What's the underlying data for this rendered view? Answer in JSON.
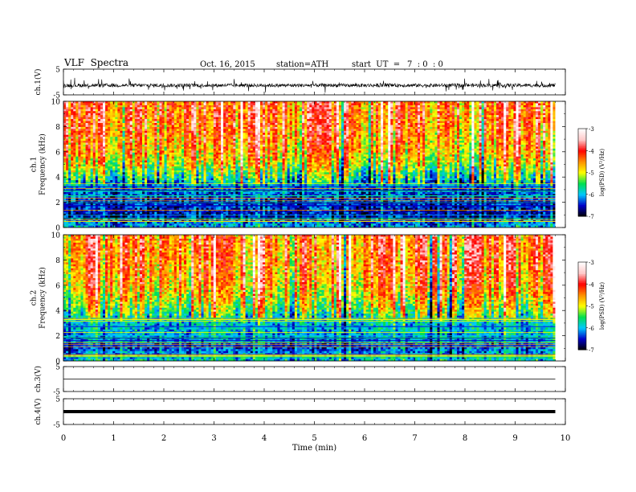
{
  "header": {
    "title": "VLF  Spectra",
    "date": "Oct. 16, 2015",
    "station": "station=ATH",
    "start_label": "start  UT  =",
    "start_time": "7  : 0  : 0"
  },
  "chart_data": [
    {
      "panel": "ch1-waveform",
      "type": "line",
      "ylabel": "ch.1(V)",
      "ylim": [
        -5,
        5
      ],
      "yticks": [
        "5",
        "-5"
      ],
      "xlim": [
        0,
        10
      ],
      "baseline": -1.3,
      "duration_min": 9.8,
      "color": "#000000"
    },
    {
      "panel": "ch1-spectrogram",
      "type": "heatmap",
      "ylabel": "ch.1\nFrequency  (kHz)",
      "ylim": [
        0,
        10
      ],
      "yticks": [
        "0",
        "2",
        "4",
        "6",
        "8",
        "10"
      ],
      "xlim": [
        0,
        9.8
      ],
      "colorbar": {
        "label": "log(PSD) (V²/Hz)",
        "range": [
          -7,
          -3
        ],
        "ticks": [
          "-7",
          "-6",
          "-5",
          "-4",
          "-3"
        ],
        "colors": [
          "#000000",
          "#0000c8",
          "#00c8ff",
          "#00e050",
          "#ffff00",
          "#ff9000",
          "#ff0000",
          "#ffc8c8",
          "#ffffff"
        ]
      },
      "level_by_frequency_khz": [
        [
          0,
          -6.0
        ],
        [
          1,
          -6.6
        ],
        [
          2,
          -6.4
        ],
        [
          3,
          -6.3
        ],
        [
          4,
          -5.6
        ],
        [
          5,
          -5.0
        ],
        [
          6,
          -4.6
        ],
        [
          8,
          -4.3
        ],
        [
          10,
          -4.2
        ]
      ]
    },
    {
      "panel": "ch2-spectrogram",
      "type": "heatmap",
      "ylabel": "ch.2\nFrequency  (kHz)",
      "ylim": [
        0,
        10
      ],
      "yticks": [
        "0",
        "2",
        "4",
        "6",
        "8",
        "10"
      ],
      "xlim": [
        0,
        9.8
      ],
      "colorbar": {
        "label": "log(PSD) (V²/Hz)",
        "range": [
          -7,
          -3
        ],
        "ticks": [
          "-7",
          "-6",
          "-5",
          "-4",
          "-3"
        ],
        "colors": [
          "#000000",
          "#0000c8",
          "#00c8ff",
          "#00e050",
          "#ffff00",
          "#ff9000",
          "#ff0000",
          "#ffc8c8",
          "#ffffff"
        ]
      },
      "level_by_frequency_khz": [
        [
          0,
          -5.8
        ],
        [
          1,
          -6.3
        ],
        [
          2,
          -6.0
        ],
        [
          3,
          -5.9
        ],
        [
          4,
          -5.2
        ],
        [
          5,
          -4.8
        ],
        [
          6,
          -4.5
        ],
        [
          8,
          -4.3
        ],
        [
          10,
          -4.2
        ]
      ]
    },
    {
      "panel": "ch3-waveform",
      "type": "line",
      "ylabel": "ch.3(V)",
      "ylim": [
        -5,
        5
      ],
      "yticks": [
        "5",
        "-5"
      ],
      "baseline": 0,
      "duration_min": 9.8,
      "color": "#000000"
    },
    {
      "panel": "ch4-waveform",
      "type": "line",
      "ylabel": "ch.4(V)",
      "ylim": [
        -5,
        5
      ],
      "yticks": [
        "5",
        "-5"
      ],
      "baseline": 0,
      "duration_min": 9.8,
      "color": "#000000"
    }
  ],
  "time_axis": {
    "label": "Time  (min)",
    "range": [
      0,
      10
    ],
    "ticks": [
      "0",
      "1",
      "2",
      "3",
      "4",
      "5",
      "6",
      "7",
      "8",
      "9",
      "10"
    ]
  }
}
